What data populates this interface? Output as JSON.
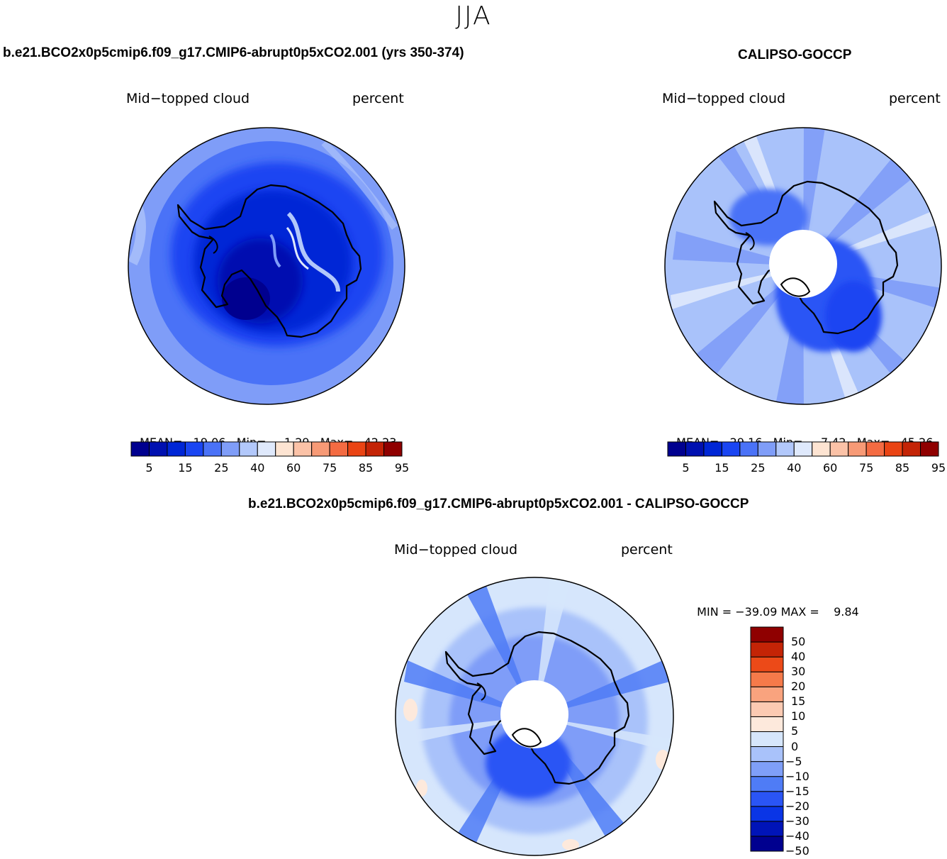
{
  "season": "JJA",
  "panels": {
    "model": {
      "case_title": "b.e21.BCO2x0p5cmip6.f09_g17.CMIP6-abrupt0p5xCO2.001 (yrs 350-374)",
      "variable": "Mid−topped cloud",
      "units": "percent",
      "stats": {
        "mean_label": "MEAN=",
        "mean": "19.06",
        "min_label": "Min=",
        "min": "1.29",
        "max_label": "Max=",
        "max": "42.23"
      }
    },
    "obs": {
      "case_title": "CALIPSO-GOCCP",
      "variable": "Mid−topped cloud",
      "units": "percent",
      "stats": {
        "mean_label": "MEAN=",
        "mean": "29.16",
        "min_label": "Min=",
        "min": "7.42",
        "max_label": "Max=",
        "max": "45.26"
      }
    },
    "diff": {
      "case_title": "b.e21.BCO2x0p5cmip6.f09_g17.CMIP6-abrupt0p5xCO2.001 - CALIPSO-GOCCP",
      "variable": "Mid−topped cloud",
      "units": "percent",
      "minmax": {
        "min_label": "MIN =",
        "min": "−39.09",
        "max_label": "MAX =",
        "max": "9.84"
      }
    }
  },
  "colorbar_abs": {
    "colors": [
      "#00008f",
      "#0010b0",
      "#0026d6",
      "#1a45f2",
      "#4a72f7",
      "#7f9df8",
      "#b2c8fb",
      "#dfe9fc",
      "#fde4d2",
      "#fbc2a7",
      "#f79a76",
      "#f46b42",
      "#ea4414",
      "#c42406",
      "#8f0000"
    ],
    "ticks": [
      "5",
      "15",
      "25",
      "40",
      "60",
      "75",
      "85",
      "95"
    ]
  },
  "colorbar_diff": {
    "colors": [
      "#00008f",
      "#0014b8",
      "#0a35e6",
      "#2a55f5",
      "#4f7cf6",
      "#7f9ff8",
      "#a9c2fa",
      "#d6e6fc",
      "#fde9dc",
      "#fbcab2",
      "#f9a37e",
      "#f57a4a",
      "#ec4a18",
      "#c42406",
      "#8f0000"
    ],
    "ticks": [
      "50",
      "40",
      "30",
      "20",
      "15",
      "10",
      "5",
      "0",
      "−5",
      "−10",
      "−15",
      "−20",
      "−30",
      "−40",
      "−50"
    ]
  },
  "chart_data": [
    {
      "type": "map",
      "title": "Mid−topped cloud",
      "units": "percent",
      "projection": "south polar stereographic",
      "case": "b.e21.BCO2x0p5cmip6.f09_g17.CMIP6-abrupt0p5xCO2.001 (yrs 350-374)",
      "mean": 19.06,
      "min": 1.29,
      "max": 42.23,
      "levels": [
        5,
        10,
        15,
        20,
        25,
        30,
        40,
        50,
        60,
        70,
        75,
        80,
        85,
        90,
        95
      ]
    },
    {
      "type": "map",
      "title": "Mid−topped cloud",
      "units": "percent",
      "projection": "south polar stereographic",
      "case": "CALIPSO-GOCCP",
      "mean": 29.16,
      "min": 7.42,
      "max": 45.26,
      "levels": [
        5,
        10,
        15,
        20,
        25,
        30,
        40,
        50,
        60,
        70,
        75,
        80,
        85,
        90,
        95
      ]
    },
    {
      "type": "map",
      "title": "Mid−topped cloud",
      "units": "percent",
      "projection": "south polar stereographic",
      "case": "b.e21.BCO2x0p5cmip6.f09_g17.CMIP6-abrupt0p5xCO2.001 - CALIPSO-GOCCP",
      "min": -39.09,
      "max": 9.84,
      "levels": [
        -50,
        -40,
        -30,
        -20,
        -15,
        -10,
        -5,
        0,
        5,
        10,
        15,
        20,
        30,
        40,
        50
      ]
    }
  ]
}
